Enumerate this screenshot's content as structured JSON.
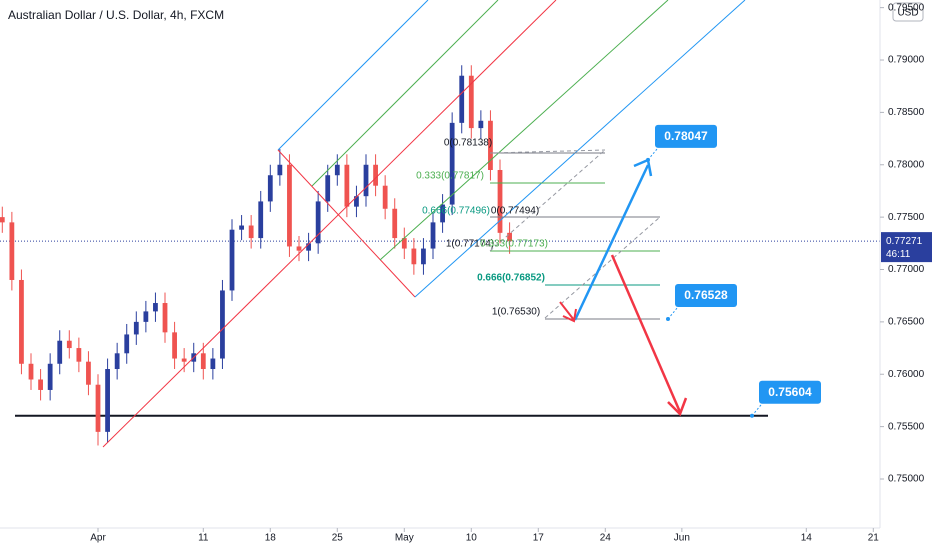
{
  "chart_data": {
    "type": "candlestick",
    "title": "Australian Dollar / U.S. Dollar, 4h, FXCM",
    "x": [
      -10,
      -9,
      -8,
      -7,
      -6,
      -5,
      -4,
      -3,
      -2,
      -1,
      0,
      1,
      2,
      3,
      4,
      5,
      6,
      7,
      8,
      9,
      10,
      11,
      12,
      13,
      14,
      15,
      16,
      17,
      18,
      19,
      20,
      21,
      22,
      23,
      24,
      25,
      26,
      27,
      28,
      29,
      30,
      31,
      32,
      33,
      34,
      35,
      36,
      37,
      38,
      39,
      40,
      41,
      42,
      43
    ],
    "open": [
      0.775,
      0.7745,
      0.769,
      0.761,
      0.7595,
      0.7585,
      0.761,
      0.7632,
      0.7625,
      0.7612,
      0.759,
      0.7545,
      0.7605,
      0.762,
      0.7638,
      0.765,
      0.766,
      0.7668,
      0.764,
      0.7615,
      0.7612,
      0.762,
      0.7605,
      0.7615,
      0.768,
      0.7738,
      0.7742,
      0.773,
      0.7765,
      0.779,
      0.78,
      0.7722,
      0.7718,
      0.7725,
      0.7765,
      0.779,
      0.78,
      0.776,
      0.777,
      0.78,
      0.778,
      0.7758,
      0.773,
      0.772,
      0.7705,
      0.772,
      0.7745,
      0.7762,
      0.784,
      0.7885,
      0.7835,
      0.7842,
      0.7795,
      0.7735
    ],
    "high": [
      0.776,
      0.7755,
      0.77,
      0.762,
      0.7605,
      0.762,
      0.7642,
      0.7642,
      0.7635,
      0.7622,
      0.76,
      0.7615,
      0.763,
      0.7648,
      0.766,
      0.767,
      0.7678,
      0.7678,
      0.765,
      0.7625,
      0.763,
      0.763,
      0.7625,
      0.769,
      0.7748,
      0.7752,
      0.7752,
      0.7775,
      0.78,
      0.7815,
      0.781,
      0.7732,
      0.7735,
      0.7775,
      0.78,
      0.781,
      0.781,
      0.778,
      0.781,
      0.781,
      0.779,
      0.7768,
      0.774,
      0.773,
      0.773,
      0.7755,
      0.7772,
      0.785,
      0.7895,
      0.7895,
      0.7852,
      0.7852,
      0.7805,
      0.7745
    ],
    "low": [
      0.7735,
      0.768,
      0.76,
      0.7585,
      0.7575,
      0.7575,
      0.76,
      0.7615,
      0.7602,
      0.758,
      0.7532,
      0.7535,
      0.7595,
      0.761,
      0.7628,
      0.764,
      0.765,
      0.763,
      0.7605,
      0.7602,
      0.7602,
      0.7595,
      0.7595,
      0.7605,
      0.767,
      0.7728,
      0.772,
      0.772,
      0.7755,
      0.778,
      0.7712,
      0.7708,
      0.7708,
      0.7715,
      0.7755,
      0.778,
      0.775,
      0.775,
      0.776,
      0.777,
      0.7748,
      0.772,
      0.771,
      0.7695,
      0.7695,
      0.771,
      0.7735,
      0.7752,
      0.783,
      0.7825,
      0.7825,
      0.7785,
      0.7725,
      0.7715
    ],
    "close": [
      0.7745,
      0.769,
      0.761,
      0.7595,
      0.7585,
      0.761,
      0.7632,
      0.7625,
      0.7612,
      0.759,
      0.7545,
      0.7605,
      0.762,
      0.7638,
      0.765,
      0.766,
      0.7668,
      0.764,
      0.7615,
      0.7612,
      0.762,
      0.7605,
      0.7615,
      0.768,
      0.7738,
      0.7742,
      0.773,
      0.7765,
      0.779,
      0.78,
      0.7722,
      0.7718,
      0.7725,
      0.7765,
      0.779,
      0.78,
      0.776,
      0.777,
      0.78,
      0.778,
      0.7758,
      0.773,
      0.772,
      0.7705,
      0.772,
      0.7745,
      0.7762,
      0.784,
      0.7885,
      0.7835,
      0.7842,
      0.7795,
      0.7735,
      0.7727
    ],
    "up_color": "#2a3f9e",
    "down_color": "#ef5350",
    "xlim": [
      -10.24,
      81.7
    ],
    "xticks": [
      {
        "value": 0,
        "label": "Apr"
      },
      11,
      18,
      25,
      {
        "value": 32,
        "label": "May"
      },
      {
        "value": 39,
        "label": "10"
      },
      {
        "value": 46,
        "label": "17"
      },
      {
        "value": 53,
        "label": "24"
      },
      {
        "value": 61,
        "label": "Jun"
      },
      {
        "value": 74,
        "label": "14"
      },
      {
        "value": 81,
        "label": "21"
      }
    ],
    "ylim": [
      0.74513,
      0.79573
    ],
    "yticks": [
      {
        "value": 0.75,
        "label": "0.75000"
      },
      {
        "value": 0.755,
        "label": "0.75500"
      },
      {
        "value": 0.76,
        "label": "0.76000"
      },
      {
        "value": 0.765,
        "label": "0.76500"
      },
      {
        "value": 0.77,
        "label": "0.77000"
      },
      {
        "value": 0.775,
        "label": "0.77500"
      },
      {
        "value": 0.78,
        "label": "0.78000"
      },
      {
        "value": 0.785,
        "label": "0.78500"
      },
      {
        "value": 0.79,
        "label": "0.79000"
      },
      {
        "value": 0.795,
        "label": "0.79500"
      }
    ],
    "currency": "USD",
    "current_price": 0.77271,
    "countdown": "46:11",
    "fib_labels": [
      "0(0.78138)",
      "0.333(0.77817)",
      "0.666(0.77496)",
      "1(0.77174)",
      "0(0.77494)",
      "0.333(0.77173)",
      "0.666(0.76852)",
      "1(0.76530)"
    ],
    "targets": [
      0.78047,
      0.76528,
      0.75604
    ]
  }
}
